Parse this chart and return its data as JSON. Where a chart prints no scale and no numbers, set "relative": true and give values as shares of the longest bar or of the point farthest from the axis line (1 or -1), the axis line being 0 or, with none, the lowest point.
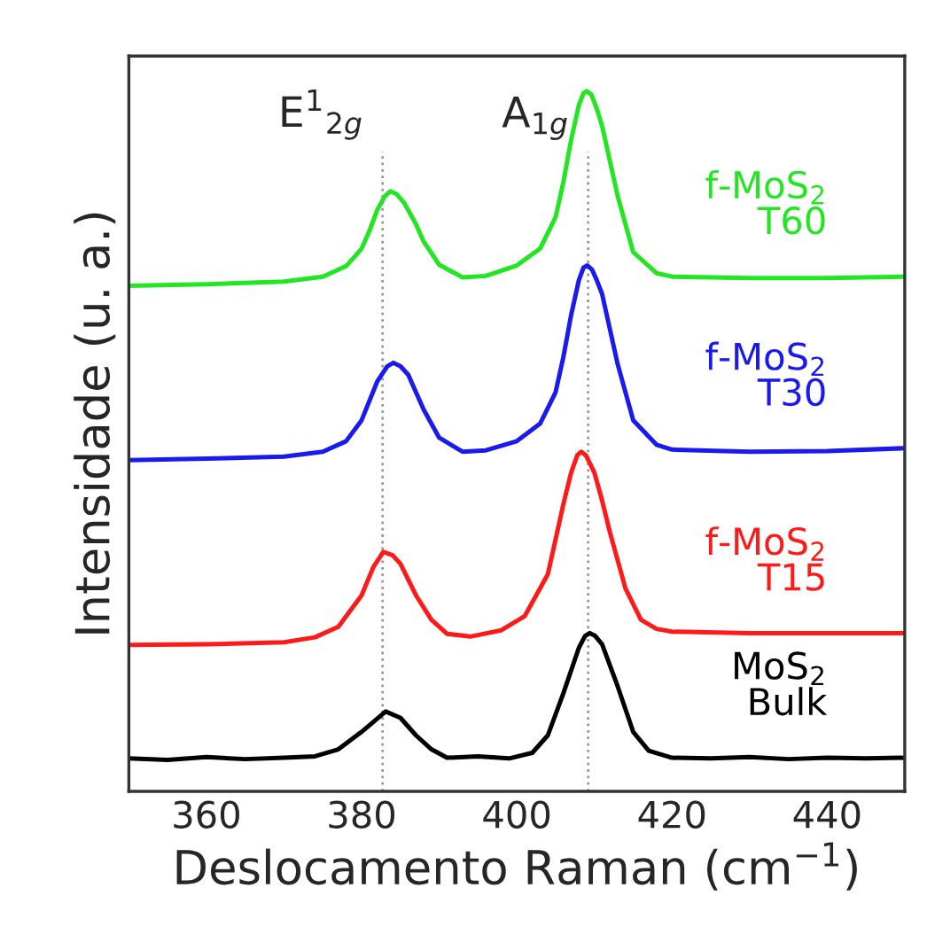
{
  "chart_data": {
    "type": "line",
    "relative": true,
    "xlabel": "Deslocamento Raman (cm$^{−1}$)",
    "ylabel": "Intensidade (u. a.)",
    "xlim": [
      350,
      450
    ],
    "xticks": [
      360,
      380,
      400,
      420,
      440
    ],
    "tick_labels": "x",
    "grid": false,
    "legend": false,
    "marker": "none",
    "line_style": "solid",
    "ref_lines": [
      {
        "axis": "x",
        "value": 382.7,
        "label": "E$^{1}$$_{2g}$",
        "color": "#999999",
        "line_style": "dotted"
      },
      {
        "axis": "x",
        "value": 409.2,
        "label": "A$_{1g}$",
        "color": "#999999",
        "line_style": "dotted"
      }
    ],
    "series": [
      {
        "name": "f-MoS$_{2}$\nT60",
        "color": "#22e622",
        "x": [
          350,
          360,
          370,
          375,
          378,
          380,
          381,
          382,
          383,
          383.7,
          384.5,
          385.5,
          387,
          388,
          390,
          393,
          396,
          400,
          403,
          405,
          406,
          407,
          408,
          408.6,
          409,
          409.6,
          410.3,
          411,
          412,
          413,
          415,
          418,
          420,
          430,
          440,
          450
        ],
        "values": [
          0.722,
          0.724,
          0.728,
          0.735,
          0.75,
          0.775,
          0.8,
          0.83,
          0.85,
          0.857,
          0.853,
          0.84,
          0.81,
          0.785,
          0.752,
          0.734,
          0.736,
          0.751,
          0.775,
          0.82,
          0.87,
          0.93,
          0.98,
          0.997,
          1.0,
          0.995,
          0.975,
          0.95,
          0.9,
          0.85,
          0.77,
          0.74,
          0.735,
          0.733,
          0.733,
          0.735
        ]
      },
      {
        "name": "f-MoS$_{2}$\nT30",
        "color": "#1a1aee",
        "x": [
          350,
          360,
          370,
          375,
          378,
          380,
          382,
          383.3,
          384.1,
          385,
          386,
          388,
          390,
          393,
          396,
          400,
          403,
          405,
          406,
          407,
          408,
          408.6,
          409.1,
          409.7,
          410.3,
          411,
          412,
          413,
          415,
          418,
          420,
          430,
          440,
          450
        ],
        "values": [
          0.473,
          0.475,
          0.478,
          0.485,
          0.5,
          0.53,
          0.585,
          0.607,
          0.612,
          0.607,
          0.595,
          0.545,
          0.505,
          0.485,
          0.487,
          0.5,
          0.525,
          0.57,
          0.62,
          0.68,
          0.73,
          0.748,
          0.751,
          0.745,
          0.73,
          0.71,
          0.66,
          0.61,
          0.53,
          0.495,
          0.488,
          0.485,
          0.486,
          0.49
        ]
      },
      {
        "name": "f-MoS$_{2}$\nT15",
        "color": "#ff1a1a",
        "x": [
          350,
          360,
          370,
          374,
          377,
          380,
          381.5,
          382.8,
          384,
          385,
          387,
          389,
          391,
          394,
          398,
          401,
          404,
          406,
          407,
          407.8,
          408.3,
          408.9,
          410,
          411,
          412,
          414,
          416,
          418,
          420,
          430,
          440,
          450
        ],
        "values": [
          0.209,
          0.21,
          0.213,
          0.22,
          0.235,
          0.28,
          0.32,
          0.342,
          0.337,
          0.325,
          0.28,
          0.245,
          0.225,
          0.221,
          0.23,
          0.25,
          0.31,
          0.41,
          0.455,
          0.48,
          0.485,
          0.48,
          0.455,
          0.415,
          0.37,
          0.29,
          0.245,
          0.232,
          0.228,
          0.226,
          0.226,
          0.226
        ]
      },
      {
        "name": "MoS$_{2}$\nBulk",
        "color": "#000000",
        "x": [
          350,
          355,
          360,
          365,
          370,
          374,
          377,
          380,
          383.1,
          385,
          387,
          389,
          391,
          395,
          399,
          402,
          404,
          406,
          408,
          408.8,
          409.4,
          410.1,
          411,
          413,
          415,
          417,
          420,
          425,
          430,
          435,
          440,
          445,
          450
        ],
        "values": [
          0.047,
          0.045,
          0.049,
          0.046,
          0.048,
          0.05,
          0.06,
          0.085,
          0.114,
          0.105,
          0.08,
          0.06,
          0.048,
          0.05,
          0.047,
          0.055,
          0.08,
          0.14,
          0.205,
          0.222,
          0.226,
          0.222,
          0.21,
          0.15,
          0.085,
          0.058,
          0.048,
          0.047,
          0.049,
          0.046,
          0.048,
          0.047,
          0.048
        ]
      }
    ]
  }
}
